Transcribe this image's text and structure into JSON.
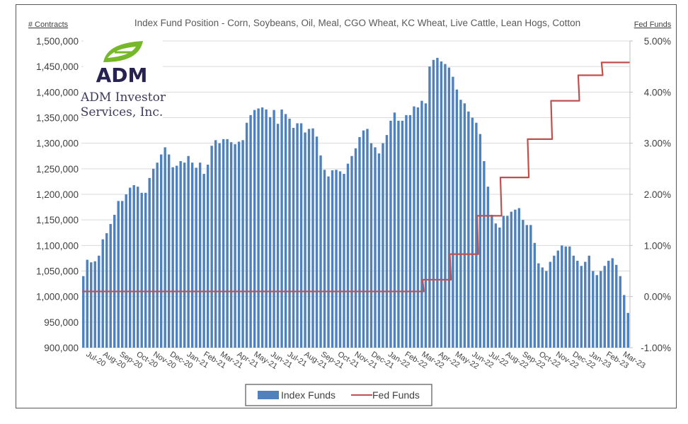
{
  "chart_data": {
    "type": "bar",
    "title": "Index Fund Position - Corn, Soybeans, Oil, Meal, CGO Wheat, KC Wheat, Live Cattle, Lean Hogs, Cotton",
    "ylabel": "# Contracts",
    "y2label": "Fed Funds",
    "ylim": [
      900000,
      1500000
    ],
    "y2lim": [
      -1.0,
      5.0
    ],
    "yticks": [
      "900,000",
      "950,000",
      "1,000,000",
      "1,050,000",
      "1,100,000",
      "1,150,000",
      "1,200,000",
      "1,250,000",
      "1,300,000",
      "1,350,000",
      "1,400,000",
      "1,450,000",
      "1,500,000"
    ],
    "y2ticks": [
      "-1.00%",
      "0.00%",
      "1.00%",
      "2.00%",
      "3.00%",
      "4.00%",
      "5.00%"
    ],
    "xticks": [
      "Jul-20",
      "Aug-20",
      "Sep-20",
      "Oct-20",
      "Nov-20",
      "Dec-20",
      "Jan-21",
      "Feb-21",
      "Mar-21",
      "Apr-21",
      "May-21",
      "Jun-21",
      "Jul-21",
      "Aug-21",
      "Sep-21",
      "Oct-21",
      "Nov-21",
      "Dec-21",
      "Jan-22",
      "Feb-22",
      "Mar-22",
      "Apr-22",
      "May-22",
      "Jun-22",
      "Jul-22",
      "Aug-22",
      "Sep-22",
      "Oct-22",
      "Nov-22",
      "Dec-22",
      "Jan-23",
      "Feb-23",
      "Mar-23"
    ],
    "grid": true,
    "legend_position": "bottom",
    "series": [
      {
        "name": "Index Funds",
        "type": "bar",
        "axis": "left",
        "color": "#4f81bd",
        "values": [
          1040000,
          1072000,
          1067000,
          1069000,
          1080000,
          1112000,
          1124000,
          1142000,
          1160000,
          1187000,
          1187000,
          1200000,
          1213000,
          1218000,
          1215000,
          1203000,
          1203000,
          1232000,
          1250000,
          1262000,
          1278000,
          1292000,
          1278000,
          1253000,
          1256000,
          1265000,
          1262000,
          1275000,
          1262000,
          1252000,
          1262000,
          1240000,
          1258000,
          1295000,
          1306000,
          1300000,
          1308000,
          1308000,
          1302000,
          1298000,
          1303000,
          1306000,
          1340000,
          1355000,
          1365000,
          1368000,
          1370000,
          1366000,
          1351000,
          1365000,
          1338000,
          1366000,
          1357000,
          1348000,
          1330000,
          1339000,
          1339000,
          1321000,
          1328000,
          1329000,
          1313000,
          1276000,
          1248000,
          1235000,
          1247000,
          1248000,
          1245000,
          1240000,
          1260000,
          1275000,
          1290000,
          1312000,
          1325000,
          1328000,
          1300000,
          1292000,
          1280000,
          1300000,
          1316000,
          1344000,
          1360000,
          1344000,
          1344000,
          1355000,
          1355000,
          1372000,
          1370000,
          1383000,
          1378000,
          1450000,
          1463000,
          1467000,
          1460000,
          1455000,
          1448000,
          1430000,
          1405000,
          1385000,
          1378000,
          1362000,
          1350000,
          1340000,
          1318000,
          1265000,
          1215000,
          1160000,
          1143000,
          1135000,
          1158000,
          1158000,
          1166000,
          1170000,
          1173000,
          1150000,
          1140000,
          1140000,
          1105000,
          1065000,
          1057000,
          1050000,
          1068000,
          1080000,
          1090000,
          1100000,
          1098000,
          1098000,
          1080000,
          1070000,
          1060000,
          1068000,
          1080000,
          1050000,
          1042000,
          1050000,
          1060000,
          1070000,
          1075000,
          1062000,
          1040000,
          1003000,
          968000
        ]
      },
      {
        "name": "Fed Funds",
        "type": "line",
        "axis": "right",
        "color": "#c0504d",
        "steps": [
          {
            "from_week": 0,
            "value": 0.1
          },
          {
            "from_week": 88,
            "value": 0.33
          },
          {
            "from_week": 95,
            "value": 0.83
          },
          {
            "from_week": 102,
            "value": 1.58
          },
          {
            "from_week": 108,
            "value": 2.33
          },
          {
            "from_week": 115,
            "value": 3.08
          },
          {
            "from_week": 121,
            "value": 3.83
          },
          {
            "from_week": 128,
            "value": 4.33
          },
          {
            "from_week": 134,
            "value": 4.58
          }
        ]
      }
    ]
  },
  "logo": {
    "brand": "ADM",
    "subtitle_line1": "ADM Investor",
    "subtitle_line2": "Services, Inc."
  },
  "legend": {
    "items": [
      {
        "label": "Index Funds",
        "color": "#4f81bd"
      },
      {
        "label": "Fed Funds",
        "color": "#c0504d"
      }
    ]
  }
}
